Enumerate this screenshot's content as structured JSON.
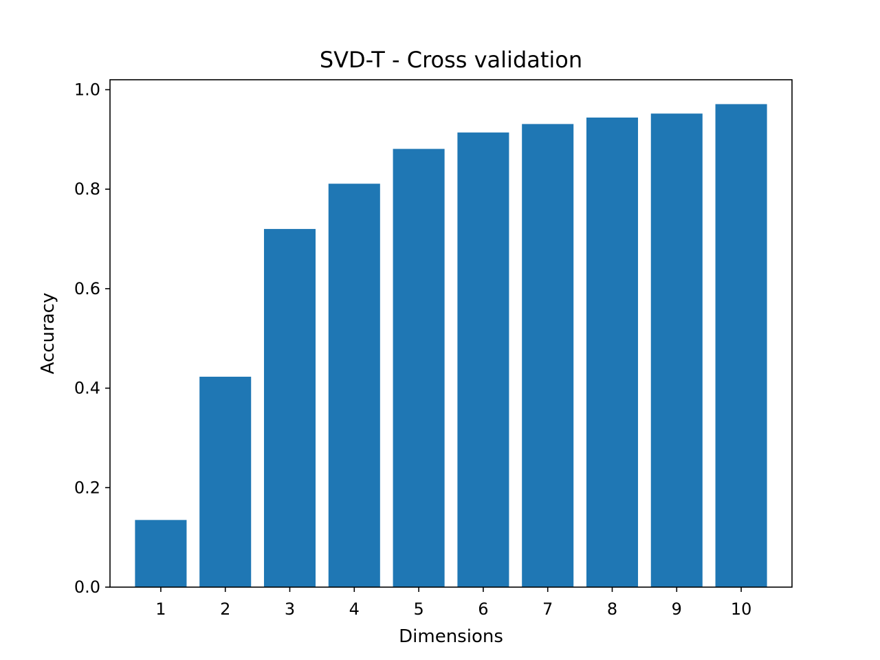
{
  "chart_data": {
    "type": "bar",
    "title": "SVD-T - Cross validation",
    "xlabel": "Dimensions",
    "ylabel": "Accuracy",
    "categories": [
      "1",
      "2",
      "3",
      "4",
      "5",
      "6",
      "7",
      "8",
      "9",
      "10"
    ],
    "values": [
      0.135,
      0.423,
      0.72,
      0.811,
      0.881,
      0.914,
      0.931,
      0.944,
      0.952,
      0.971
    ],
    "ylim": [
      0,
      1.02
    ],
    "yticks": [
      "0.0",
      "0.2",
      "0.4",
      "0.6",
      "0.8",
      "1.0"
    ],
    "grid": false,
    "legend": "none",
    "bar_color": "#1f77b4"
  }
}
